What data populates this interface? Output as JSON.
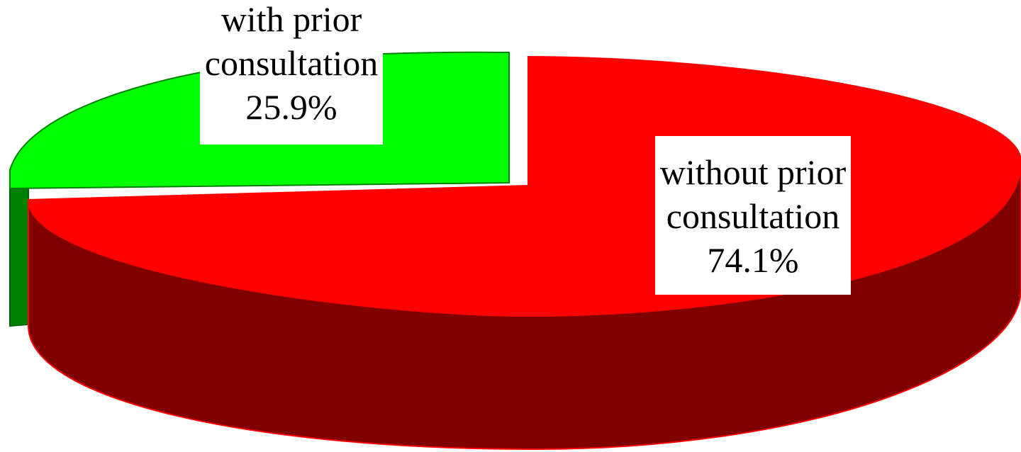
{
  "chart_data": {
    "type": "pie",
    "style": "3d-exploded",
    "slices": [
      {
        "label_lines": [
          "with prior",
          "consultation"
        ],
        "percent_text": "25.9%",
        "value": 25.9,
        "top_color": "#00ff00",
        "side_color": "#008000",
        "exploded": true
      },
      {
        "label_lines": [
          "without prior",
          "consultation"
        ],
        "percent_text": "74.1%",
        "value": 74.1,
        "top_color": "#ff0000",
        "side_color": "#800000",
        "exploded": false
      }
    ],
    "title": "",
    "legend": "none"
  }
}
